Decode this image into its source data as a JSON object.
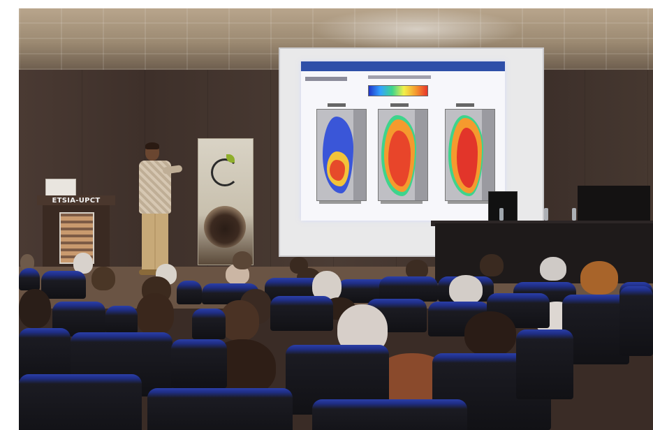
{
  "photo": {
    "scene": "photograph",
    "lectern_sign": "ETSIA-UPCT",
    "colors": {
      "wall": "#3e302a",
      "chair_blue": "#2b3fa8",
      "screen": "#f7f7fb"
    }
  }
}
